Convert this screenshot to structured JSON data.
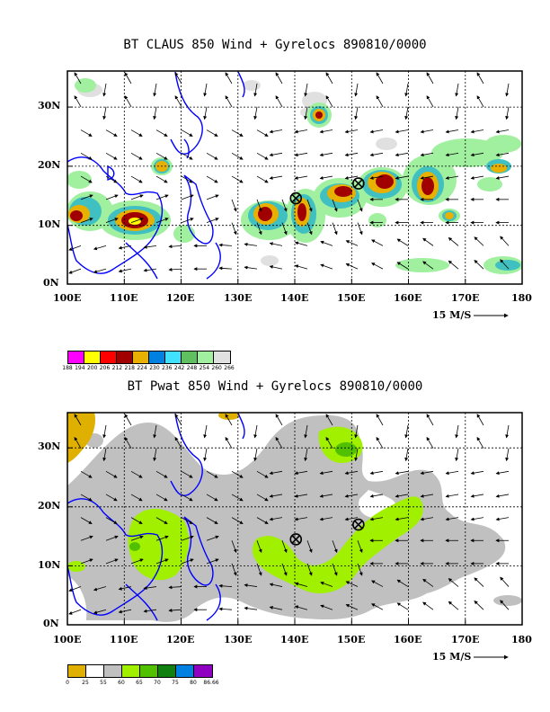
{
  "panels": [
    {
      "id": "claus",
      "title": "BT CLAUS 850 Wind + Gyrelocs 890810/0000",
      "x_ticks": [
        "100E",
        "110E",
        "120E",
        "130E",
        "140E",
        "150E",
        "160E",
        "170E",
        "180"
      ],
      "y_ticks": [
        "0N",
        "10N",
        "20N",
        "30N"
      ],
      "vector_scale_label": "15 M/S",
      "legend": {
        "colors": [
          "#ff00ff",
          "#ffff00",
          "#ff0000",
          "#a00000",
          "#e8b000",
          "#0080e0",
          "#40e0ff",
          "#60c060",
          "#a0f0a0",
          "#e0e0e0"
        ],
        "ticks": [
          "188",
          "194",
          "200",
          "206",
          "212",
          "218",
          "224",
          "230",
          "236",
          "242",
          "248",
          "254",
          "260",
          "266"
        ]
      },
      "gyres": [
        {
          "lon": 140.2,
          "lat": 14.5
        },
        {
          "lon": 151.2,
          "lat": 17.0
        }
      ]
    },
    {
      "id": "pwat",
      "title": "BT Pwat 850 Wind + Gyrelocs 890810/0000",
      "x_ticks": [
        "100E",
        "110E",
        "120E",
        "130E",
        "140E",
        "150E",
        "160E",
        "170E",
        "180"
      ],
      "y_ticks": [
        "0N",
        "10N",
        "20N",
        "30N"
      ],
      "vector_scale_label": "15 M/S",
      "legend": {
        "colors": [
          "#e0b000",
          "#ffffff",
          "#c0c0c0",
          "#a0f000",
          "#50c000",
          "#108010",
          "#0080e0",
          "#9000c0"
        ],
        "ticks": [
          "0",
          "25",
          "55",
          "60",
          "65",
          "70",
          "75",
          "80",
          "86.66"
        ]
      },
      "gyres": [
        {
          "lon": 140.2,
          "lat": 14.5
        },
        {
          "lon": 151.2,
          "lat": 17.0
        }
      ]
    }
  ]
}
